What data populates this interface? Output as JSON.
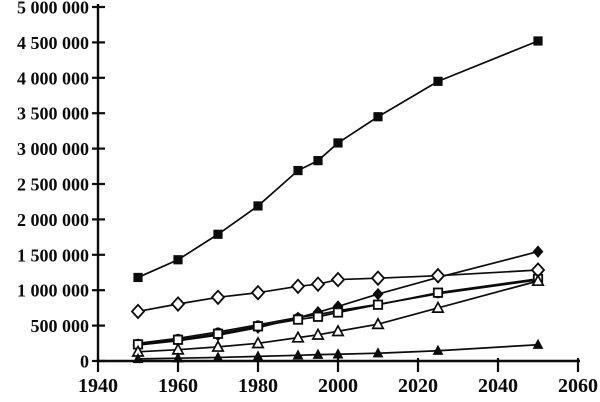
{
  "chart_data": {
    "type": "line",
    "title": "",
    "xlabel": "",
    "ylabel": "",
    "grid": false,
    "legend_position": "none",
    "xlim": [
      1940,
      2060
    ],
    "ylim": [
      0,
      5000000
    ],
    "x_ticks": [
      1940,
      1960,
      1980,
      2000,
      2020,
      2040,
      2060
    ],
    "x_tick_labels": [
      "1940",
      "1960",
      "1980",
      "2000",
      "2020",
      "2040",
      "2060"
    ],
    "y_ticks": [
      0,
      500000,
      1000000,
      1500000,
      2000000,
      2500000,
      3000000,
      3500000,
      4000000,
      4500000,
      5000000
    ],
    "y_tick_labels": [
      "0",
      "500 000",
      "1 000 000",
      "1 500 000",
      "2 000 000",
      "2 500 000",
      "3 000 000",
      "3 500 000",
      "4 000 000",
      "4 500 000",
      "5 000 000"
    ],
    "x": [
      1950,
      1960,
      1970,
      1980,
      1990,
      1995,
      2000,
      2010,
      2025,
      2050
    ],
    "series": [
      {
        "name": "series-filled-square",
        "marker": "filled-square",
        "values": [
          1180000,
          1430000,
          1790000,
          2190000,
          2690000,
          2830000,
          3080000,
          3450000,
          3950000,
          4520000
        ]
      },
      {
        "name": "series-filled-circle",
        "marker": "filled-circle",
        "values": [
          250000,
          320000,
          410000,
          510000,
          615000,
          655000,
          710000,
          800000,
          950000,
          1145000
        ]
      },
      {
        "name": "series-filled-diamond",
        "marker": "filled-diamond",
        "values": [
          225000,
          285000,
          365000,
          470000,
          610000,
          690000,
          770000,
          945000,
          1180000,
          1545000
        ]
      },
      {
        "name": "series-open-square",
        "marker": "open-square",
        "values": [
          235000,
          300000,
          385000,
          490000,
          585000,
          625000,
          685000,
          795000,
          965000,
          1160000
        ]
      },
      {
        "name": "series-open-diamond",
        "marker": "open-diamond",
        "values": [
          700000,
          805000,
          900000,
          965000,
          1055000,
          1085000,
          1150000,
          1170000,
          1205000,
          1285000
        ]
      },
      {
        "name": "series-open-triangle",
        "marker": "open-triangle",
        "values": [
          130000,
          160000,
          200000,
          250000,
          330000,
          370000,
          420000,
          520000,
          750000,
          1130000
        ]
      },
      {
        "name": "series-filled-triangle",
        "marker": "filled-triangle",
        "values": [
          30000,
          40000,
          50000,
          65000,
          80000,
          90000,
          95000,
          110000,
          145000,
          230000
        ]
      }
    ],
    "colors": {
      "ink": "#0b0b0b",
      "paper": "#ffffff"
    }
  }
}
